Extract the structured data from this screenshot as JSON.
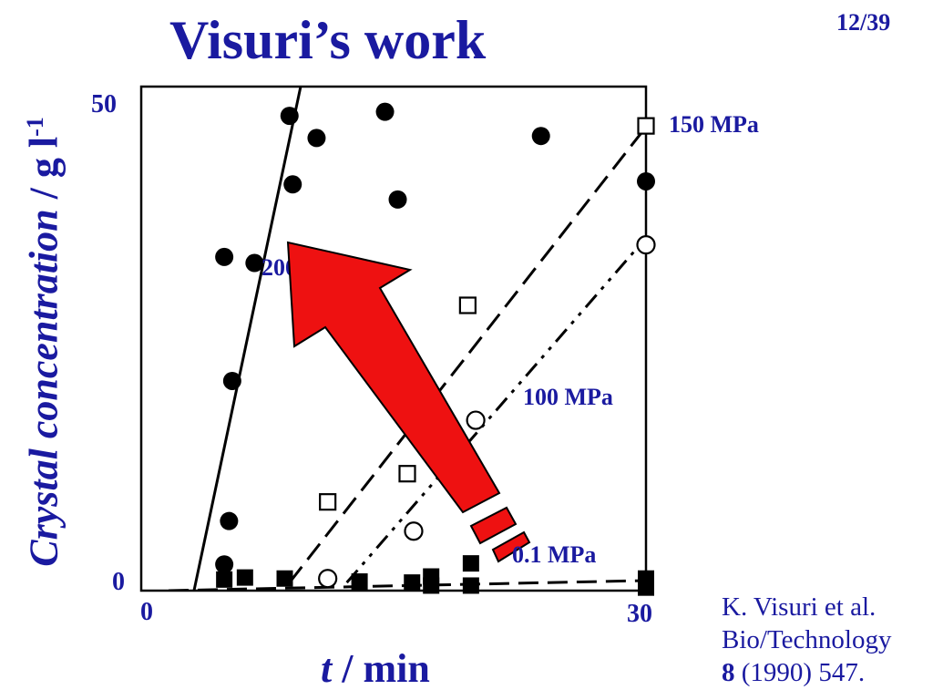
{
  "slide": {
    "title": "Visuri’s work",
    "page": "12/39"
  },
  "axes": {
    "ylabel_italic": "Crystal concentration",
    "ylabel_unit": " / g l",
    "ylabel_sup": "-1",
    "xlabel_italic": "t",
    "xlabel_unit": " / min"
  },
  "citation": {
    "line1": "K. Visuri et al.",
    "line2": "Bio/Technology",
    "volume": "8",
    "rest": " (1990) 547."
  },
  "colors": {
    "text": "#1a1aa0",
    "marker": "#000000",
    "arrow_fill": "#ee1111",
    "arrow_stroke": "#000000"
  },
  "chart_data": {
    "type": "scatter",
    "xlim": [
      0,
      30
    ],
    "ylim": [
      0,
      50
    ],
    "xticks": [
      "0",
      "30"
    ],
    "yticks": [
      "0",
      "50"
    ],
    "grid": false,
    "series": [
      {
        "name": "200 MPa",
        "marker": "filled-circle",
        "line": "solid",
        "fit": [
          [
            1.6,
            0
          ],
          [
            8.3,
            50
          ]
        ],
        "points": [
          [
            3.5,
            2.6
          ],
          [
            3.8,
            6.9
          ],
          [
            4,
            20.8
          ],
          [
            3.5,
            33.1
          ],
          [
            5.4,
            32.5
          ],
          [
            7.6,
            47.1
          ],
          [
            7.8,
            40.3
          ],
          [
            9.3,
            44.9
          ],
          [
            13.6,
            47.5
          ],
          [
            14.4,
            38.8
          ],
          [
            23.4,
            45.1
          ],
          [
            30,
            40.6
          ]
        ]
      },
      {
        "name": "150 MPa",
        "marker": "open-square",
        "line": "dashed",
        "fit": [
          [
            7.6,
            0.8
          ],
          [
            30,
            46
          ]
        ],
        "points": [
          [
            10,
            8.8
          ],
          [
            15,
            11.6
          ],
          [
            18.8,
            28.3
          ],
          [
            30,
            46.1
          ]
        ]
      },
      {
        "name": "100 MPa",
        "marker": "open-circle",
        "line": "dash-dot-dot",
        "fit": [
          [
            11.2,
            0.8
          ],
          [
            30,
            35
          ]
        ],
        "points": [
          [
            10,
            1.2
          ],
          [
            15.4,
            5.9
          ],
          [
            19.3,
            16.9
          ],
          [
            30,
            34.3
          ]
        ]
      },
      {
        "name": "0.1 MPa",
        "marker": "filled-square",
        "line": "dashed",
        "fit": [
          [
            0,
            0
          ],
          [
            30,
            1
          ]
        ],
        "points": [
          [
            3.5,
            1.1
          ],
          [
            4.8,
            1.3
          ],
          [
            7.3,
            1.2
          ],
          [
            12,
            0.9
          ],
          [
            15.3,
            0.8
          ],
          [
            16.5,
            0.5
          ],
          [
            16.5,
            1.4
          ],
          [
            19,
            0.5
          ],
          [
            19,
            2.7
          ],
          [
            30,
            1.2
          ],
          [
            30,
            0.3
          ]
        ]
      }
    ],
    "series_labels": [
      "150 MPa",
      "100 MPa",
      "0.1 MPa",
      "200 MPa"
    ]
  }
}
